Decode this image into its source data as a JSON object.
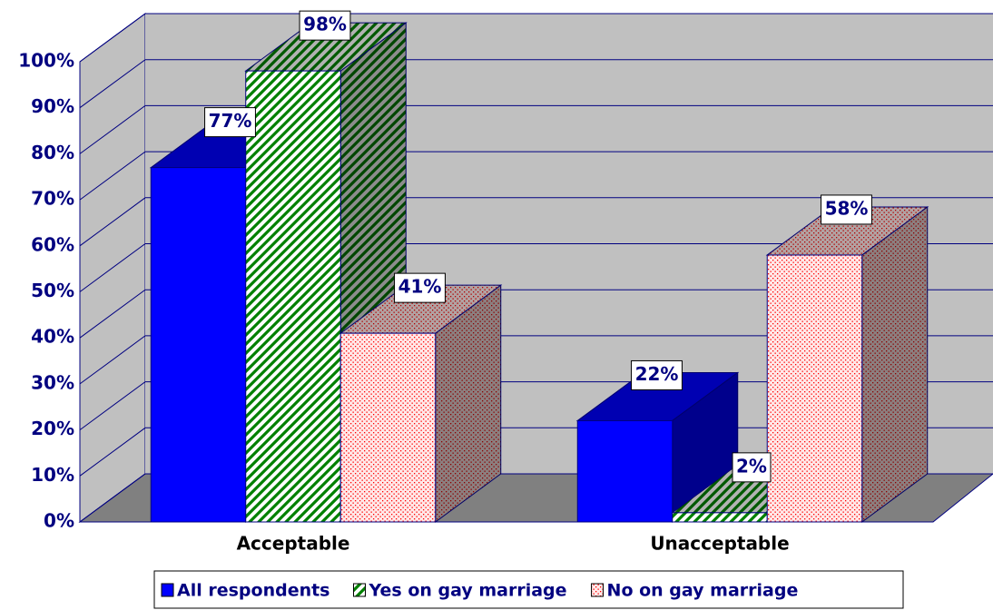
{
  "chart_data": {
    "type": "bar3d",
    "categories": [
      "Acceptable",
      "Unacceptable"
    ],
    "series": [
      {
        "name": "All respondents",
        "color": "#0000ff",
        "pattern": "solid",
        "values": [
          77,
          22
        ],
        "value_labels": [
          "77%",
          "22%"
        ]
      },
      {
        "name": "Yes on gay marriage",
        "color": "#008000",
        "pattern": "stripes",
        "values": [
          98,
          2
        ],
        "value_labels": [
          "98%",
          "2%"
        ]
      },
      {
        "name": "No on gay marriage",
        "color": "#ff0000",
        "pattern": "dots",
        "values": [
          41,
          58
        ],
        "value_labels": [
          "41%",
          "58%"
        ]
      }
    ],
    "ylim": [
      0,
      100
    ],
    "yticks": [
      {
        "value": 0,
        "label": "0%"
      },
      {
        "value": 10,
        "label": "10%"
      },
      {
        "value": 20,
        "label": "20%"
      },
      {
        "value": 30,
        "label": "30%"
      },
      {
        "value": 40,
        "label": "40%"
      },
      {
        "value": 50,
        "label": "50%"
      },
      {
        "value": 60,
        "label": "60%"
      },
      {
        "value": 70,
        "label": "70%"
      },
      {
        "value": 80,
        "label": "80%"
      },
      {
        "value": 90,
        "label": "90%"
      },
      {
        "value": 100,
        "label": "100%"
      }
    ],
    "grid": true,
    "legend": "bottom"
  }
}
